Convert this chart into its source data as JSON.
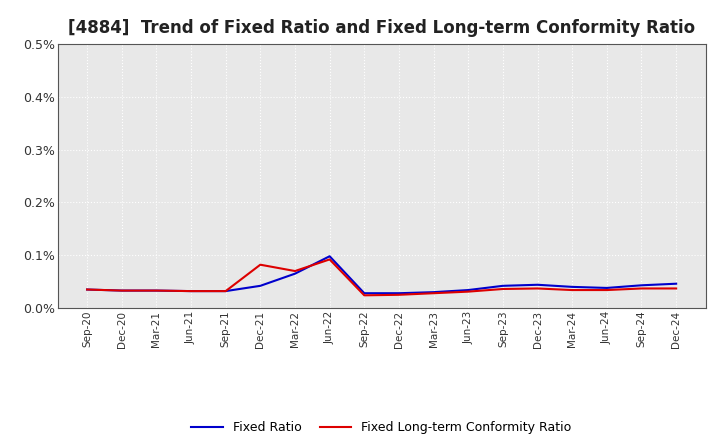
{
  "title": "[4884]  Trend of Fixed Ratio and Fixed Long-term Conformity Ratio",
  "title_fontsize": 12,
  "background_color": "#ffffff",
  "plot_background": "#e8e8e8",
  "grid_color": "#ffffff",
  "grid_major_color": "#c8c8c8",
  "x_labels": [
    "Sep-20",
    "Dec-20",
    "Mar-21",
    "Jun-21",
    "Sep-21",
    "Dec-21",
    "Mar-22",
    "Jun-22",
    "Sep-22",
    "Dec-22",
    "Mar-23",
    "Jun-23",
    "Sep-23",
    "Dec-23",
    "Mar-24",
    "Jun-24",
    "Sep-24",
    "Dec-24"
  ],
  "fixed_ratio": [
    0.00035,
    0.00033,
    0.00033,
    0.00032,
    0.00032,
    0.00042,
    0.00065,
    0.00098,
    0.00028,
    0.00028,
    0.0003,
    0.00034,
    0.00042,
    0.00044,
    0.0004,
    0.00038,
    0.00043,
    0.00046
  ],
  "fixed_lt_ratio": [
    0.00035,
    0.00033,
    0.00033,
    0.00032,
    0.00032,
    0.00082,
    0.0007,
    0.00092,
    0.00024,
    0.00025,
    0.00028,
    0.00031,
    0.00036,
    0.00037,
    0.00034,
    0.00034,
    0.00037,
    0.00037
  ],
  "fixed_ratio_color": "#0000cc",
  "fixed_lt_ratio_color": "#dd0000",
  "ylim": [
    0,
    0.005
  ],
  "yticks": [
    0.0,
    0.001,
    0.002,
    0.003,
    0.004,
    0.005
  ],
  "ytick_labels": [
    "0.0%",
    "0.1%",
    "0.2%",
    "0.3%",
    "0.4%",
    "0.5%"
  ],
  "legend_fixed_ratio": "Fixed Ratio",
  "legend_fixed_lt_ratio": "Fixed Long-term Conformity Ratio",
  "line_width": 1.5
}
